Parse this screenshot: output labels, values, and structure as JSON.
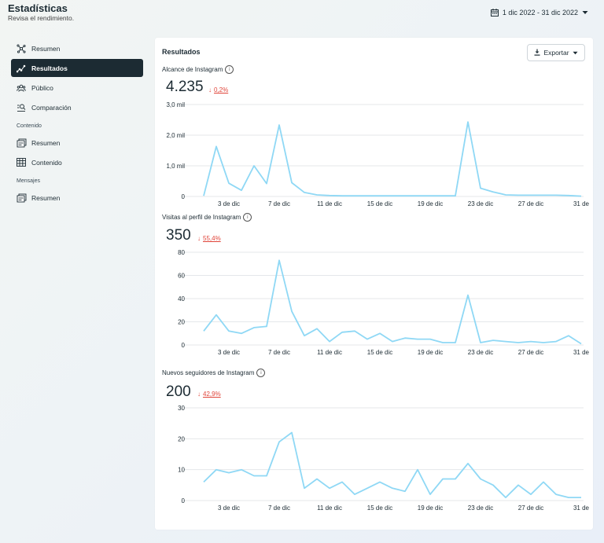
{
  "header": {
    "title": "Estadísticas",
    "subtitle": "Revisa el rendimiento.",
    "date_range": "1 dic 2022 - 31 dic 2022"
  },
  "sidebar": {
    "items": [
      {
        "label": "Resumen",
        "icon": "overview-icon"
      },
      {
        "label": "Resultados",
        "icon": "trend-icon",
        "active": true
      },
      {
        "label": "Público",
        "icon": "audience-icon"
      },
      {
        "label": "Comparación",
        "icon": "compare-icon"
      }
    ],
    "sections": [
      {
        "title": "Contenido",
        "items": [
          {
            "label": "Resumen",
            "icon": "content-overview-icon"
          },
          {
            "label": "Contenido",
            "icon": "table-icon"
          }
        ]
      },
      {
        "title": "Mensajes",
        "items": [
          {
            "label": "Resumen",
            "icon": "messages-overview-icon"
          }
        ]
      }
    ]
  },
  "panel": {
    "title": "Resultados",
    "export_label": "Exportar"
  },
  "colors": {
    "line": "#8fd8f5",
    "decrease": "#e0453a",
    "active_nav": "#1c2b33"
  },
  "metrics": [
    {
      "title": "Alcance de Instagram",
      "value": "4.235",
      "change": "0,2%"
    },
    {
      "title": "Visitas al perfil de Instagram",
      "value": "350",
      "change": "55,4%"
    },
    {
      "title": "Nuevos seguidores de Instagram",
      "value": "200",
      "change": "42,9%"
    }
  ],
  "chart_data": [
    {
      "type": "line",
      "title": "Alcance de Instagram",
      "x": [
        1,
        2,
        3,
        4,
        5,
        6,
        7,
        8,
        9,
        10,
        11,
        12,
        13,
        14,
        15,
        16,
        17,
        18,
        19,
        20,
        21,
        22,
        23,
        24,
        25,
        26,
        27,
        28,
        29,
        30,
        31
      ],
      "x_tick_labels": [
        "3 de dic",
        "7 de dic",
        "11 de dic",
        "15 de dic",
        "19 de dic",
        "23 de dic",
        "27 de dic",
        "31 de"
      ],
      "x_tick_positions": [
        3,
        7,
        11,
        15,
        19,
        23,
        27,
        31
      ],
      "y_tick_labels": [
        "0",
        "1,0 mil",
        "2,0 mil",
        "3,0 mil"
      ],
      "y_ticks": [
        0,
        1000,
        2000,
        3000
      ],
      "ylim": [
        0,
        3000
      ],
      "values": [
        20,
        1630,
        430,
        200,
        1000,
        420,
        2330,
        450,
        130,
        50,
        30,
        20,
        20,
        20,
        20,
        20,
        20,
        20,
        20,
        20,
        20,
        2430,
        270,
        150,
        50,
        40,
        40,
        40,
        40,
        30,
        10
      ]
    },
    {
      "type": "line",
      "title": "Visitas al perfil de Instagram",
      "x": [
        1,
        2,
        3,
        4,
        5,
        6,
        7,
        8,
        9,
        10,
        11,
        12,
        13,
        14,
        15,
        16,
        17,
        18,
        19,
        20,
        21,
        22,
        23,
        24,
        25,
        26,
        27,
        28,
        29,
        30,
        31
      ],
      "x_tick_labels": [
        "3 de dic",
        "7 de dic",
        "11 de dic",
        "15 de dic",
        "19 de dic",
        "23 de dic",
        "27 de dic",
        "31 de"
      ],
      "x_tick_positions": [
        3,
        7,
        11,
        15,
        19,
        23,
        27,
        31
      ],
      "y_tick_labels": [
        "0",
        "20",
        "40",
        "60",
        "80"
      ],
      "y_ticks": [
        0,
        20,
        40,
        60,
        80
      ],
      "ylim": [
        0,
        80
      ],
      "values": [
        12,
        26,
        12,
        10,
        15,
        16,
        73,
        29,
        8,
        14,
        3,
        11,
        12,
        5,
        10,
        3,
        6,
        5,
        5,
        2,
        2,
        43,
        2,
        4,
        3,
        2,
        3,
        2,
        3,
        8,
        1
      ]
    },
    {
      "type": "line",
      "title": "Nuevos seguidores de Instagram",
      "x": [
        1,
        2,
        3,
        4,
        5,
        6,
        7,
        8,
        9,
        10,
        11,
        12,
        13,
        14,
        15,
        16,
        17,
        18,
        19,
        20,
        21,
        22,
        23,
        24,
        25,
        26,
        27,
        28,
        29,
        30,
        31
      ],
      "x_tick_labels": [
        "3 de dic",
        "7 de dic",
        "11 de dic",
        "15 de dic",
        "19 de dic",
        "23 de dic",
        "27 de dic",
        "31 de"
      ],
      "x_tick_positions": [
        3,
        7,
        11,
        15,
        19,
        23,
        27,
        31
      ],
      "y_tick_labels": [
        "0",
        "10",
        "20",
        "30"
      ],
      "y_ticks": [
        0,
        10,
        20,
        30
      ],
      "ylim": [
        0,
        30
      ],
      "values": [
        6,
        10,
        9,
        10,
        8,
        8,
        19,
        22,
        4,
        7,
        4,
        6,
        2,
        4,
        6,
        4,
        3,
        10,
        2,
        7,
        7,
        12,
        7,
        5,
        1,
        5,
        2,
        6,
        2,
        1,
        1
      ]
    }
  ]
}
